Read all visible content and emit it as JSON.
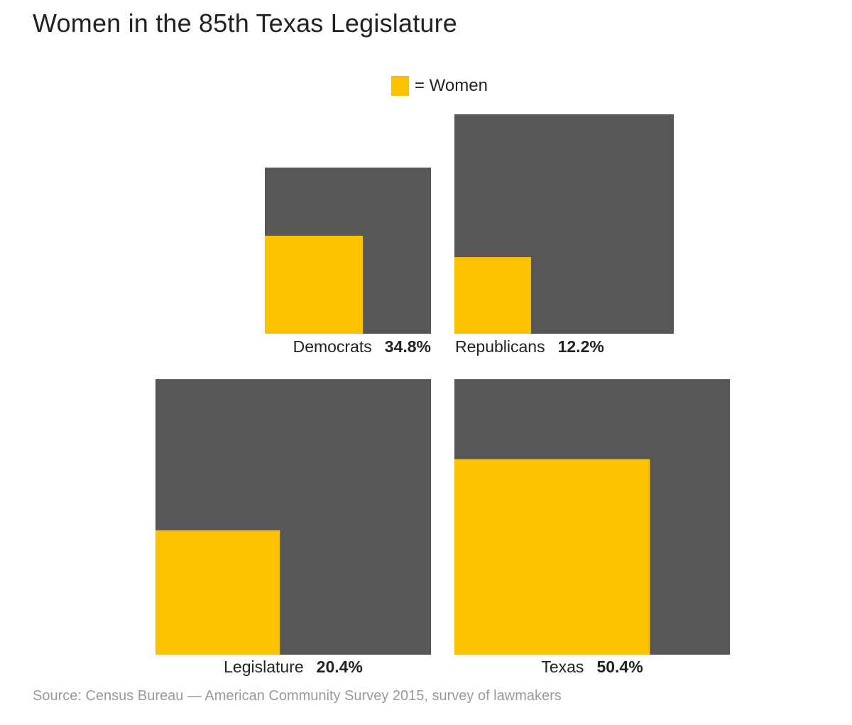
{
  "title": "Women in the 85th Texas Legislature",
  "legend": {
    "label": "= Women",
    "color": "#fdc100"
  },
  "source": "Source: Census Bureau — American Community Survey 2015, survey of lawmakers",
  "colors": {
    "total": "#575757",
    "women": "#fdc100"
  },
  "chart_data": {
    "type": "area",
    "title": "Women in the 85th Texas Legislature",
    "legend": [
      "= Women"
    ],
    "legend_placement": "top-center",
    "series": [
      {
        "name": "Democrats",
        "value_label": "34.8%",
        "value": 34.8
      },
      {
        "name": "Republicans",
        "value_label": "12.2%",
        "value": 12.2
      },
      {
        "name": "Legislature",
        "value_label": "20.4%",
        "value": 20.4
      },
      {
        "name": "Texas",
        "value_label": "50.4%",
        "value": 50.4
      }
    ]
  }
}
